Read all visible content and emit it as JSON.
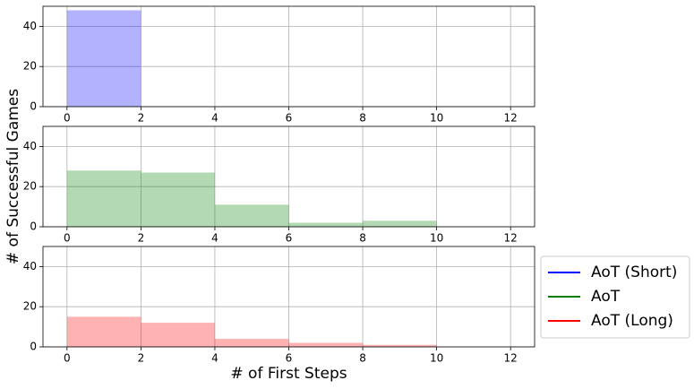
{
  "chart_data": [
    {
      "type": "histogram",
      "bins": [
        0,
        2,
        4,
        6,
        8,
        10,
        12
      ],
      "series": [
        {
          "name": "AoT (Short)",
          "color": "#0000ff",
          "values": [
            48,
            0,
            0,
            0,
            0,
            0
          ]
        }
      ],
      "alpha": 0.3,
      "xlim": [
        -0.65,
        12.65
      ],
      "xticks": [
        0,
        2,
        4,
        6,
        8,
        10,
        12
      ],
      "ylim": [
        0,
        50
      ],
      "yticks": [
        0,
        20,
        40
      ],
      "grid": true
    },
    {
      "type": "histogram",
      "bins": [
        0,
        2,
        4,
        6,
        8,
        10,
        12
      ],
      "series": [
        {
          "name": "AoT",
          "color": "#008000",
          "values": [
            28,
            27,
            11,
            2,
            3,
            0
          ]
        }
      ],
      "alpha": 0.3,
      "xlim": [
        -0.65,
        12.65
      ],
      "xticks": [
        0,
        2,
        4,
        6,
        8,
        10,
        12
      ],
      "ylim": [
        0,
        50
      ],
      "yticks": [
        0,
        20,
        40
      ],
      "grid": true,
      "ylabel": "# of Successful Games"
    },
    {
      "type": "histogram",
      "bins": [
        0,
        2,
        4,
        6,
        8,
        10,
        12
      ],
      "series": [
        {
          "name": "AoT (Long)",
          "color": "#ff0000",
          "values": [
            15,
            12,
            4,
            2,
            1,
            0
          ]
        }
      ],
      "alpha": 0.3,
      "xlim": [
        -0.65,
        12.65
      ],
      "xticks": [
        0,
        2,
        4,
        6,
        8,
        10,
        12
      ],
      "ylim": [
        0,
        50
      ],
      "yticks": [
        0,
        20,
        40
      ],
      "grid": true,
      "xlabel": "# of First Steps",
      "legend": "outside right"
    }
  ]
}
